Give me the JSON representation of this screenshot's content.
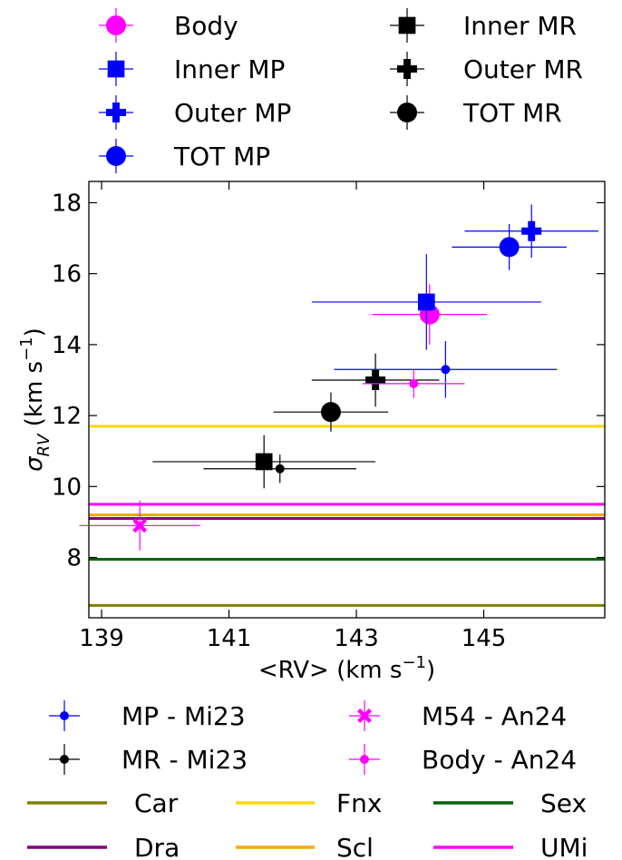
{
  "chart_data": {
    "type": "scatter",
    "xlabel_parts": [
      "<RV> (km s",
      "−1",
      ")"
    ],
    "ylabel_parts": [
      "σ",
      "RV",
      " (km s",
      "−1",
      ")"
    ],
    "xlim": [
      138.8,
      146.9
    ],
    "ylim": [
      6.3,
      18.6
    ],
    "x_ticks": [
      139,
      141,
      143,
      145
    ],
    "y_ticks": [
      8,
      10,
      12,
      14,
      16,
      18
    ],
    "grid": false,
    "series": [
      {
        "name": "Body",
        "color": "#ff00ff",
        "marker": "circle",
        "size": "large",
        "points": [
          {
            "x": 144.15,
            "y": 14.85,
            "xerr": 0.9,
            "yerr": 0.85
          }
        ]
      },
      {
        "name": "Inner MP",
        "color": "#0000ff",
        "marker": "square",
        "size": "large",
        "points": [
          {
            "x": 144.1,
            "y": 15.2,
            "xerr": 1.8,
            "yerr": 1.35
          }
        ]
      },
      {
        "name": "Outer MP",
        "color": "#0000ff",
        "marker": "plus",
        "size": "large",
        "points": [
          {
            "x": 145.75,
            "y": 17.2,
            "xerr": 1.05,
            "yerr": 0.75
          }
        ]
      },
      {
        "name": "TOT MP",
        "color": "#0000ff",
        "marker": "circle",
        "size": "large",
        "points": [
          {
            "x": 145.4,
            "y": 16.75,
            "xerr": 0.9,
            "yerr": 0.65
          }
        ]
      },
      {
        "name": "Inner MR",
        "color": "#000000",
        "marker": "square",
        "size": "large",
        "points": [
          {
            "x": 141.55,
            "y": 10.7,
            "xerr": 1.75,
            "yerr": 0.75
          }
        ]
      },
      {
        "name": "Outer MR",
        "color": "#000000",
        "marker": "plus",
        "size": "large",
        "points": [
          {
            "x": 143.3,
            "y": 13.0,
            "xerr": 1.0,
            "yerr": 0.75
          }
        ]
      },
      {
        "name": "TOT MR",
        "color": "#000000",
        "marker": "circle",
        "size": "large",
        "points": [
          {
            "x": 142.6,
            "y": 12.1,
            "xerr": 0.9,
            "yerr": 0.55
          }
        ]
      },
      {
        "name": "MP - Mi23",
        "color": "#0000ff",
        "marker": "circle",
        "size": "small",
        "points": [
          {
            "x": 144.4,
            "y": 13.3,
            "xerr": 1.75,
            "yerr": 0.8
          }
        ]
      },
      {
        "name": "MR - Mi23",
        "color": "#000000",
        "marker": "circle",
        "size": "small",
        "points": [
          {
            "x": 141.8,
            "y": 10.5,
            "xerr": 1.2,
            "yerr": 0.4
          }
        ]
      },
      {
        "name": "M54 - An24",
        "color": "#ff00ff",
        "marker": "x",
        "size": "medium",
        "points": [
          {
            "x": 139.6,
            "y": 8.9,
            "xerr": 0.95,
            "yerr": 0.7
          }
        ]
      },
      {
        "name": "Body - An24",
        "color": "#ff00ff",
        "marker": "circle",
        "size": "small",
        "points": [
          {
            "x": 143.9,
            "y": 12.9,
            "xerr": 0.8,
            "yerr": 0.4
          }
        ]
      }
    ],
    "hlines": [
      {
        "name": "Car",
        "color": "#808000",
        "y": 6.65
      },
      {
        "name": "Fnx",
        "color": "#ffd700",
        "y": 11.7
      },
      {
        "name": "Sex",
        "color": "#006400",
        "y": 7.95
      },
      {
        "name": "Dra",
        "color": "#800080",
        "y": 9.1
      },
      {
        "name": "Scl",
        "color": "#ffa500",
        "y": 9.2
      },
      {
        "name": "UMi",
        "color": "#ff00ff",
        "y": 9.5
      }
    ],
    "legend_top": {
      "placement": "above-plot",
      "columns": [
        [
          "Body",
          "Inner MP",
          "Outer MP",
          "TOT MP"
        ],
        [
          "Inner MR",
          "Outer MR",
          "TOT MR"
        ]
      ]
    },
    "legend_bottom": {
      "placement": "below-plot",
      "points_columns": [
        [
          "MP - Mi23",
          "MR - Mi23"
        ],
        [
          "M54 - An24",
          "Body - An24"
        ]
      ],
      "lines_columns": [
        [
          "Car",
          "Dra"
        ],
        [
          "Fnx",
          "Scl"
        ],
        [
          "Sex",
          "UMi"
        ]
      ]
    }
  }
}
